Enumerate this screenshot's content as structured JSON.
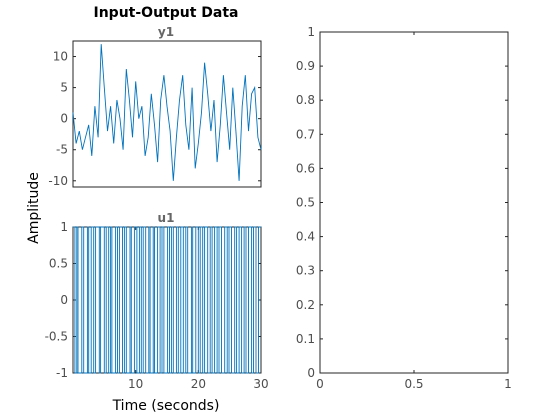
{
  "figure": {
    "title": "Input-Output Data",
    "xlabel": "Time (seconds)",
    "ylabel": "Amplitude"
  },
  "colors": {
    "line": "#0072bd",
    "axis": "#262626",
    "tick_text": "#4d4d4d",
    "subtitle": "#666666"
  },
  "chart_data": [
    {
      "type": "line",
      "title": "y1",
      "xlim": [
        0,
        30
      ],
      "ylim": [
        -11,
        12.5
      ],
      "yticks": [
        -10,
        -5,
        0,
        5,
        10
      ],
      "ytick_labels": [
        "-10",
        "-5",
        "0",
        "5",
        "10"
      ],
      "xticks": [],
      "series": [
        {
          "x": [
            0,
            0.5,
            1,
            1.5,
            2,
            2.5,
            3,
            3.5,
            4,
            4.5,
            5,
            5.5,
            6,
            6.5,
            7,
            7.5,
            8,
            8.5,
            9,
            9.5,
            10,
            10.5,
            11,
            11.5,
            12,
            12.5,
            13,
            13.5,
            14,
            14.5,
            15,
            15.5,
            16,
            16.5,
            17,
            17.5,
            18,
            18.5,
            19,
            19.5,
            20,
            20.5,
            21,
            21.5,
            22,
            22.5,
            23,
            23.5,
            24,
            24.5,
            25,
            25.5,
            26,
            26.5,
            27,
            27.5,
            28,
            28.5,
            29,
            29.5,
            30
          ],
          "y": [
            1,
            -4,
            -2,
            -5,
            -3,
            -1,
            -6,
            2,
            -3,
            12,
            5,
            -2,
            2,
            -4,
            3,
            0,
            -5,
            8,
            3,
            -3,
            6,
            0,
            2,
            -6,
            -3,
            4,
            -1,
            -7,
            3,
            7,
            2,
            -2,
            -10,
            -3,
            3,
            7,
            -1,
            -5,
            5,
            -8,
            -4,
            1,
            9,
            4,
            -2,
            3,
            -7,
            -1,
            7,
            1,
            -5,
            5,
            -2,
            -10,
            2,
            7,
            -2,
            4,
            5,
            -3,
            -5
          ]
        }
      ]
    },
    {
      "type": "line",
      "title": "u1",
      "xlim": [
        0,
        30
      ],
      "ylim": [
        -1,
        1
      ],
      "yticks": [
        -1,
        -0.5,
        0,
        0.5,
        1
      ],
      "ytick_labels": [
        "-1",
        "-0.5",
        "0",
        "0.5",
        "1"
      ],
      "xticks": [
        10,
        20,
        30
      ],
      "xtick_labels": [
        "10",
        "20",
        "30"
      ],
      "series": [
        {
          "step_times": [
            0.3,
            0.6,
            0.8,
            1.4,
            1.7,
            2.3,
            2.5,
            2.9,
            3.3,
            3.6,
            4.2,
            4.4,
            5.0,
            5.3,
            5.7,
            6.0,
            6.2,
            6.8,
            7.1,
            7.4,
            7.9,
            8.2,
            8.5,
            9.1,
            9.3,
            9.8,
            10.2,
            10.6,
            10.9,
            11.2,
            11.6,
            12.1,
            12.3,
            12.8,
            13.0,
            13.5,
            13.9,
            14.2,
            14.5,
            15.1,
            15.4,
            15.7,
            16.0,
            16.5,
            16.8,
            17.2,
            17.6,
            18.0,
            18.3,
            18.9,
            19.1,
            19.6,
            20.0,
            20.3,
            20.7,
            21.0,
            21.5,
            21.9,
            22.2,
            22.6,
            23.0,
            23.3,
            23.7,
            24.2,
            24.6,
            24.9,
            25.3,
            25.8,
            26.1,
            26.5,
            26.9,
            27.3,
            27.6,
            28.0,
            28.5,
            28.8,
            29.2,
            29.6
          ],
          "start_value": 1
        }
      ]
    },
    {
      "type": "line",
      "title": "",
      "xlim": [
        0,
        1
      ],
      "ylim": [
        0,
        1
      ],
      "xticks": [
        0,
        0.5,
        1
      ],
      "xtick_labels": [
        "0",
        "0.5",
        "1"
      ],
      "yticks": [
        0,
        0.1,
        0.2,
        0.3,
        0.4,
        0.5,
        0.6,
        0.7,
        0.8,
        0.9,
        1
      ],
      "ytick_labels": [
        "0",
        "0.1",
        "0.2",
        "0.3",
        "0.4",
        "0.5",
        "0.6",
        "0.7",
        "0.8",
        "0.9",
        "1"
      ],
      "series": []
    }
  ]
}
